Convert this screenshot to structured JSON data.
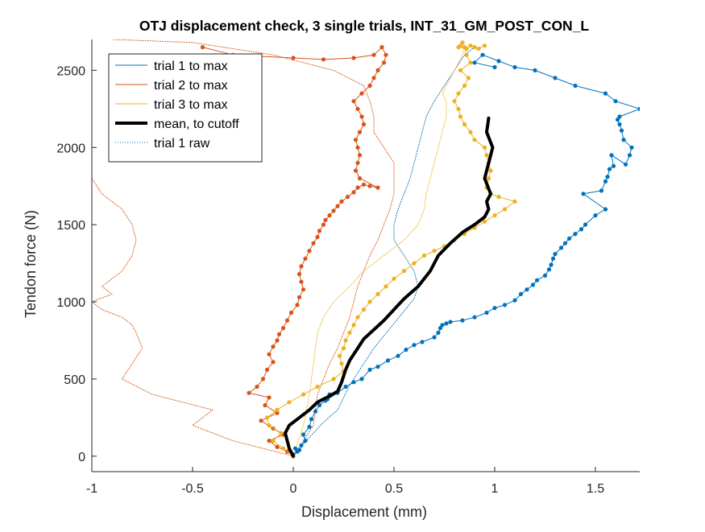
{
  "chart_data": {
    "type": "line",
    "title": "OTJ displacement check, 3 single trials, INT_31_GM_POST_CON_L",
    "xlabel": "Displacement (mm)",
    "ylabel": "Tendon force (N)",
    "xlim": [
      -1,
      1.72
    ],
    "ylim": [
      -100,
      2700
    ],
    "xticks": [
      -1,
      -0.5,
      0,
      0.5,
      1,
      1.5
    ],
    "yticks": [
      0,
      500,
      1000,
      1500,
      2000,
      2500
    ],
    "xtick_labels": [
      "-1",
      "-0.5",
      "0",
      "0.5",
      "1",
      "1.5"
    ],
    "ytick_labels": [
      "0",
      "500",
      "1000",
      "1500",
      "2000",
      "2500"
    ],
    "grid": false,
    "legend_position": "top-left",
    "colors": {
      "trial1": "#0072bd",
      "trial2": "#d95319",
      "trial3": "#edb120",
      "mean": "#000000",
      "axes": "#262626"
    },
    "legend": [
      {
        "label": "trial 1 to max",
        "color": "#0072bd",
        "style": "solid",
        "width": 1
      },
      {
        "label": "trial 2 to max",
        "color": "#d95319",
        "style": "solid",
        "width": 1
      },
      {
        "label": "trial 3 to max",
        "color": "#edb120",
        "style": "solid",
        "width": 1
      },
      {
        "label": "mean, to cutoff",
        "color": "#000000",
        "style": "solid",
        "width": 4
      },
      {
        "label": "trial 1 raw",
        "color": "#0072bd",
        "style": "dotted",
        "width": 1
      }
    ],
    "series": [
      {
        "name": "trial 1 to max",
        "color": "#0072bd",
        "style": "solid",
        "width": 1,
        "markers": true,
        "x": [
          0.0,
          0.0,
          0.02,
          0.01,
          0.03,
          0.04,
          0.06,
          0.05,
          0.08,
          0.09,
          0.11,
          0.13,
          0.16,
          0.18,
          0.17,
          0.22,
          0.26,
          0.3,
          0.34,
          0.38,
          0.42,
          0.47,
          0.52,
          0.56,
          0.6,
          0.64,
          0.7,
          0.72,
          0.73,
          0.74,
          0.76,
          0.78,
          0.84,
          0.9,
          0.96,
          1.0,
          1.05,
          1.1,
          1.13,
          1.16,
          1.19,
          1.21,
          1.25,
          1.27,
          1.28,
          1.29,
          1.3,
          1.33,
          1.35,
          1.37,
          1.4,
          1.43,
          1.45,
          1.5,
          1.55,
          1.44,
          1.53,
          1.55,
          1.56,
          1.57,
          1.59,
          1.58,
          1.65,
          1.67,
          1.68,
          1.64,
          1.63,
          1.62,
          1.61,
          1.62,
          1.72,
          1.6,
          1.55,
          1.4,
          1.3,
          1.2,
          1.1,
          1.02,
          0.94,
          0.9,
          1.0
        ],
        "y": [
          0,
          10,
          30,
          50,
          40,
          70,
          100,
          140,
          190,
          240,
          290,
          330,
          360,
          400,
          370,
          410,
          450,
          480,
          500,
          560,
          580,
          620,
          650,
          690,
          720,
          740,
          770,
          800,
          830,
          850,
          860,
          870,
          880,
          900,
          930,
          960,
          980,
          1010,
          1050,
          1080,
          1110,
          1140,
          1170,
          1210,
          1240,
          1280,
          1310,
          1350,
          1380,
          1410,
          1440,
          1470,
          1500,
          1560,
          1600,
          1700,
          1720,
          1780,
          1810,
          1860,
          1880,
          1950,
          1890,
          1950,
          2000,
          2050,
          2110,
          2150,
          2180,
          2200,
          2250,
          2300,
          2350,
          2400,
          2450,
          2500,
          2520,
          2560,
          2600,
          2550,
          2520
        ]
      },
      {
        "name": "trial 2 to max",
        "color": "#d95319",
        "style": "solid",
        "width": 1,
        "markers": true,
        "x": [
          0.0,
          -0.03,
          -0.08,
          -0.12,
          -0.05,
          -0.1,
          -0.16,
          -0.08,
          -0.14,
          -0.12,
          -0.22,
          -0.18,
          -0.15,
          -0.13,
          -0.1,
          -0.12,
          -0.1,
          -0.08,
          -0.07,
          -0.05,
          -0.03,
          -0.01,
          0.02,
          0.03,
          0.05,
          0.04,
          0.03,
          0.04,
          0.06,
          0.08,
          0.1,
          0.12,
          0.13,
          0.15,
          0.16,
          0.18,
          0.2,
          0.22,
          0.24,
          0.27,
          0.3,
          0.32,
          0.35,
          0.38,
          0.42,
          0.33,
          0.31,
          0.32,
          0.33,
          0.32,
          0.31,
          0.33,
          0.35,
          0.34,
          0.32,
          0.3,
          0.34,
          0.38,
          0.4,
          0.42,
          0.45,
          0.46,
          0.44,
          0.4,
          0.3,
          0.15,
          0.0,
          -0.3,
          -0.45
        ],
        "y": [
          0,
          30,
          60,
          100,
          140,
          180,
          230,
          280,
          330,
          380,
          410,
          450,
          500,
          560,
          610,
          660,
          710,
          750,
          790,
          830,
          880,
          930,
          980,
          1030,
          1080,
          1130,
          1180,
          1230,
          1280,
          1330,
          1380,
          1420,
          1460,
          1500,
          1530,
          1560,
          1590,
          1620,
          1650,
          1680,
          1710,
          1740,
          1760,
          1750,
          1740,
          1800,
          1850,
          1900,
          1950,
          2000,
          2050,
          2100,
          2150,
          2200,
          2250,
          2300,
          2350,
          2400,
          2450,
          2500,
          2550,
          2600,
          2650,
          2600,
          2580,
          2570,
          2580,
          2600,
          2650
        ]
      },
      {
        "name": "trial 3 to max",
        "color": "#edb120",
        "style": "solid",
        "width": 1,
        "markers": true,
        "x": [
          0.0,
          -0.05,
          -0.1,
          -0.06,
          -0.12,
          -0.13,
          -0.08,
          -0.02,
          0.05,
          0.12,
          0.2,
          0.25,
          0.24,
          0.23,
          0.25,
          0.26,
          0.28,
          0.3,
          0.32,
          0.35,
          0.38,
          0.42,
          0.46,
          0.5,
          0.55,
          0.6,
          0.65,
          0.7,
          0.75,
          0.8,
          0.85,
          0.9,
          0.95,
          1.0,
          1.05,
          1.1,
          1.02,
          0.98,
          0.96,
          0.97,
          0.98,
          0.97,
          0.96,
          0.95,
          0.9,
          0.88,
          0.85,
          0.83,
          0.82,
          0.8,
          0.82,
          0.85,
          0.87,
          0.83,
          0.88,
          0.86,
          0.85,
          0.84,
          0.83,
          0.82,
          0.86,
          0.88,
          0.9,
          0.92,
          0.95
        ],
        "y": [
          0,
          50,
          100,
          150,
          200,
          250,
          300,
          350,
          400,
          450,
          500,
          550,
          600,
          650,
          700,
          750,
          800,
          850,
          900,
          950,
          1000,
          1050,
          1100,
          1150,
          1200,
          1250,
          1300,
          1330,
          1360,
          1400,
          1440,
          1480,
          1520,
          1560,
          1600,
          1650,
          1680,
          1700,
          1740,
          1800,
          1850,
          1900,
          1950,
          2000,
          2050,
          2100,
          2150,
          2200,
          2250,
          2300,
          2350,
          2400,
          2450,
          2500,
          2550,
          2600,
          2650,
          2680,
          2660,
          2650,
          2640,
          2660,
          2650,
          2640,
          2660
        ]
      },
      {
        "name": "mean, to cutoff",
        "color": "#000000",
        "style": "solid",
        "width": 4,
        "markers": false,
        "x": [
          0.0,
          -0.02,
          -0.03,
          -0.04,
          -0.02,
          0.03,
          0.08,
          0.12,
          0.18,
          0.22,
          0.24,
          0.26,
          0.28,
          0.32,
          0.35,
          0.4,
          0.45,
          0.5,
          0.55,
          0.62,
          0.68,
          0.72,
          0.78,
          0.84,
          0.9,
          0.95,
          0.97,
          0.96,
          0.98,
          0.95,
          0.96,
          0.99,
          0.96,
          0.97
        ],
        "y": [
          0,
          50,
          100,
          150,
          200,
          250,
          300,
          350,
          390,
          420,
          480,
          560,
          620,
          700,
          760,
          820,
          880,
          950,
          1020,
          1100,
          1200,
          1300,
          1380,
          1450,
          1500,
          1550,
          1600,
          1650,
          1700,
          1800,
          1850,
          2000,
          2100,
          2190
        ]
      },
      {
        "name": "trial 1 raw",
        "color": "#0072bd",
        "style": "dotted",
        "width": 1,
        "markers": false,
        "x": [
          0.0,
          0.05,
          0.1,
          0.15,
          0.22,
          0.25,
          0.28,
          0.32,
          0.36,
          0.4,
          0.45,
          0.5,
          0.55,
          0.6,
          0.62,
          0.6,
          0.55,
          0.5,
          0.5,
          0.52,
          0.55,
          0.58,
          0.6,
          0.62,
          0.64,
          0.66,
          0.7,
          0.75,
          0.8,
          0.85,
          0.9
        ],
        "y": [
          0,
          80,
          150,
          220,
          300,
          380,
          460,
          540,
          620,
          700,
          780,
          860,
          940,
          1020,
          1100,
          1200,
          1300,
          1400,
          1500,
          1600,
          1700,
          1800,
          1900,
          2000,
          2100,
          2200,
          2300,
          2400,
          2500,
          2600,
          2650
        ]
      },
      {
        "name": "trial 2 raw",
        "color": "#d95319",
        "style": "dotted",
        "width": 1,
        "markers": false,
        "x": [
          0.0,
          -0.3,
          -0.5,
          -0.4,
          -0.7,
          -0.85,
          -0.8,
          -0.75,
          -0.78,
          -0.8,
          -0.85,
          -0.95,
          -1.0,
          -0.9,
          -0.95,
          -0.9,
          -0.85,
          -0.8,
          -0.78,
          -0.8,
          -0.85,
          -0.95,
          -1.0
        ],
        "y": [
          0,
          100,
          200,
          300,
          400,
          500,
          600,
          700,
          800,
          850,
          900,
          950,
          1000,
          1050,
          1100,
          1150,
          1200,
          1300,
          1400,
          1500,
          1600,
          1700,
          1800
        ]
      },
      {
        "name": "trial 2 raw (upper)",
        "color": "#d95319",
        "style": "dotted",
        "width": 1,
        "markers": false,
        "x": [
          0.0,
          0.1,
          0.12,
          0.15,
          0.18,
          0.22,
          0.25,
          0.28,
          0.3,
          0.32,
          0.35,
          0.38,
          0.42,
          0.45,
          0.48,
          0.5,
          0.5,
          0.5,
          0.45,
          0.4,
          0.4,
          0.38,
          0.35,
          0.2,
          -0.1,
          -0.5,
          -0.9
        ],
        "y": [
          0,
          200,
          400,
          500,
          600,
          700,
          800,
          900,
          1000,
          1100,
          1200,
          1300,
          1400,
          1500,
          1600,
          1700,
          1800,
          1900,
          2000,
          2100,
          2200,
          2300,
          2400,
          2500,
          2600,
          2680,
          2700
        ]
      },
      {
        "name": "trial 3 raw",
        "color": "#edb120",
        "style": "dotted",
        "width": 1,
        "markers": false,
        "x": [
          0.0,
          0.05,
          0.08,
          0.1,
          0.12,
          0.15,
          0.2,
          0.28,
          0.35,
          0.45,
          0.55,
          0.62,
          0.65,
          0.66,
          0.68,
          0.7,
          0.72,
          0.74,
          0.76,
          0.76,
          0.74,
          0.76,
          0.78,
          0.8,
          0.82,
          0.84,
          0.85
        ],
        "y": [
          0,
          200,
          400,
          600,
          800,
          900,
          1000,
          1100,
          1200,
          1300,
          1400,
          1500,
          1600,
          1700,
          1800,
          1900,
          2000,
          2100,
          2200,
          2300,
          2350,
          2400,
          2450,
          2500,
          2550,
          2600,
          2650
        ]
      }
    ]
  }
}
